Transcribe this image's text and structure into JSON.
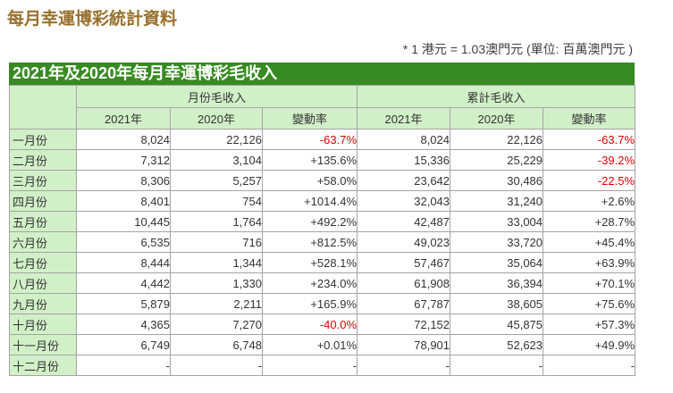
{
  "page_title": "每月幸運博彩統計資料",
  "unit_note": "* 1 港元 = 1.03澳門元 (單位: 百萬澳門元 )",
  "colors": {
    "title_text": "#97702d",
    "bar_background": "#388a22",
    "bar_text": "#ffffff",
    "header_background": "#d2f0c8",
    "border": "#a3a3a3",
    "body_text": "#333333",
    "negative_text": "#e00000"
  },
  "table": {
    "caption": "2021年及2020年每月幸運博彩毛收入",
    "group_headers": [
      "月份毛收入",
      "累計毛收入"
    ],
    "year_headers": [
      "2021年",
      "2020年",
      "變動率",
      "2021年",
      "2020年",
      "變動率"
    ],
    "rows": [
      {
        "label": "一月份",
        "m2021": "8,024",
        "m2020": "22,126",
        "mchg": "-63.7%",
        "c2021": "8,024",
        "c2020": "22,126",
        "cchg": "-63.7%"
      },
      {
        "label": "二月份",
        "m2021": "7,312",
        "m2020": "3,104",
        "mchg": "+135.6%",
        "c2021": "15,336",
        "c2020": "25,229",
        "cchg": "-39.2%"
      },
      {
        "label": "三月份",
        "m2021": "8,306",
        "m2020": "5,257",
        "mchg": "+58.0%",
        "c2021": "23,642",
        "c2020": "30,486",
        "cchg": "-22.5%"
      },
      {
        "label": "四月份",
        "m2021": "8,401",
        "m2020": "754",
        "mchg": "+1014.4%",
        "c2021": "32,043",
        "c2020": "31,240",
        "cchg": "+2.6%"
      },
      {
        "label": "五月份",
        "m2021": "10,445",
        "m2020": "1,764",
        "mchg": "+492.2%",
        "c2021": "42,487",
        "c2020": "33,004",
        "cchg": "+28.7%"
      },
      {
        "label": "六月份",
        "m2021": "6,535",
        "m2020": "716",
        "mchg": "+812.5%",
        "c2021": "49,023",
        "c2020": "33,720",
        "cchg": "+45.4%"
      },
      {
        "label": "七月份",
        "m2021": "8,444",
        "m2020": "1,344",
        "mchg": "+528.1%",
        "c2021": "57,467",
        "c2020": "35,064",
        "cchg": "+63.9%"
      },
      {
        "label": "八月份",
        "m2021": "4,442",
        "m2020": "1,330",
        "mchg": "+234.0%",
        "c2021": "61,908",
        "c2020": "36,394",
        "cchg": "+70.1%"
      },
      {
        "label": "九月份",
        "m2021": "5,879",
        "m2020": "2,211",
        "mchg": "+165.9%",
        "c2021": "67,787",
        "c2020": "38,605",
        "cchg": "+75.6%"
      },
      {
        "label": "十月份",
        "m2021": "4,365",
        "m2020": "7,270",
        "mchg": "-40.0%",
        "c2021": "72,152",
        "c2020": "45,875",
        "cchg": "+57.3%"
      },
      {
        "label": "十一月份",
        "m2021": "6,749",
        "m2020": "6,748",
        "mchg": "+0.01%",
        "c2021": "78,901",
        "c2020": "52,623",
        "cchg": "+49.9%"
      },
      {
        "label": "十二月份",
        "m2021": "-",
        "m2020": "-",
        "mchg": "-",
        "c2021": "-",
        "c2020": "-",
        "cchg": "-"
      }
    ]
  }
}
